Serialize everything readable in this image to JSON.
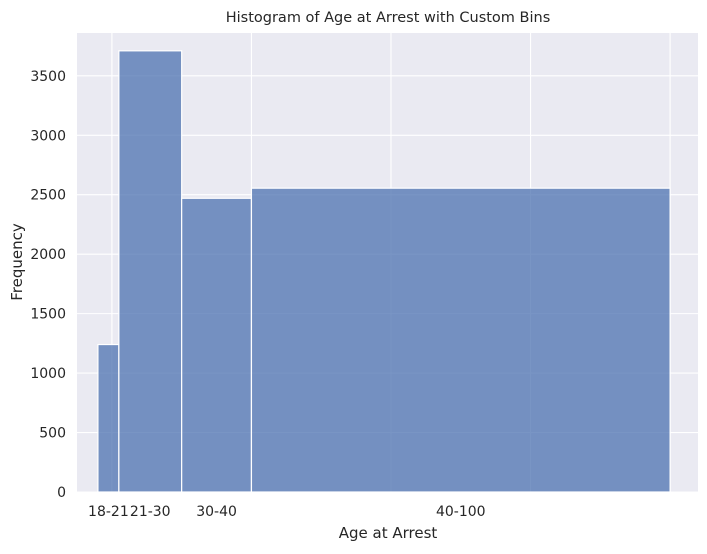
{
  "chart_data": {
    "type": "bar",
    "title": "Histogram of Age at Arrest with Custom Bins",
    "xlabel": "Age at Arrest",
    "ylabel": "Frequency",
    "bins": [
      {
        "label": "18-21",
        "start": 18,
        "end": 21,
        "value": 1240
      },
      {
        "label": "21-30",
        "start": 21,
        "end": 30,
        "value": 3710
      },
      {
        "label": "30-40",
        "start": 30,
        "end": 40,
        "value": 2470
      },
      {
        "label": "40-100",
        "start": 40,
        "end": 100,
        "value": 2555
      }
    ],
    "xlim": [
      15,
      104
    ],
    "ylim": [
      0,
      3860
    ],
    "yticks": [
      0,
      500,
      1000,
      1500,
      2000,
      2500,
      3000,
      3500
    ],
    "x_tick_values": [
      19.5,
      25.5,
      35,
      70
    ],
    "x_tick_labels": [
      "18-21",
      "21-30",
      "30-40",
      "40-100"
    ],
    "x_gridlines": [
      20,
      40,
      60,
      80,
      100
    ],
    "grid": true,
    "bar_color": "#4c72b0",
    "background_color": "#eaeaf2",
    "grid_color": "#ffffff"
  }
}
